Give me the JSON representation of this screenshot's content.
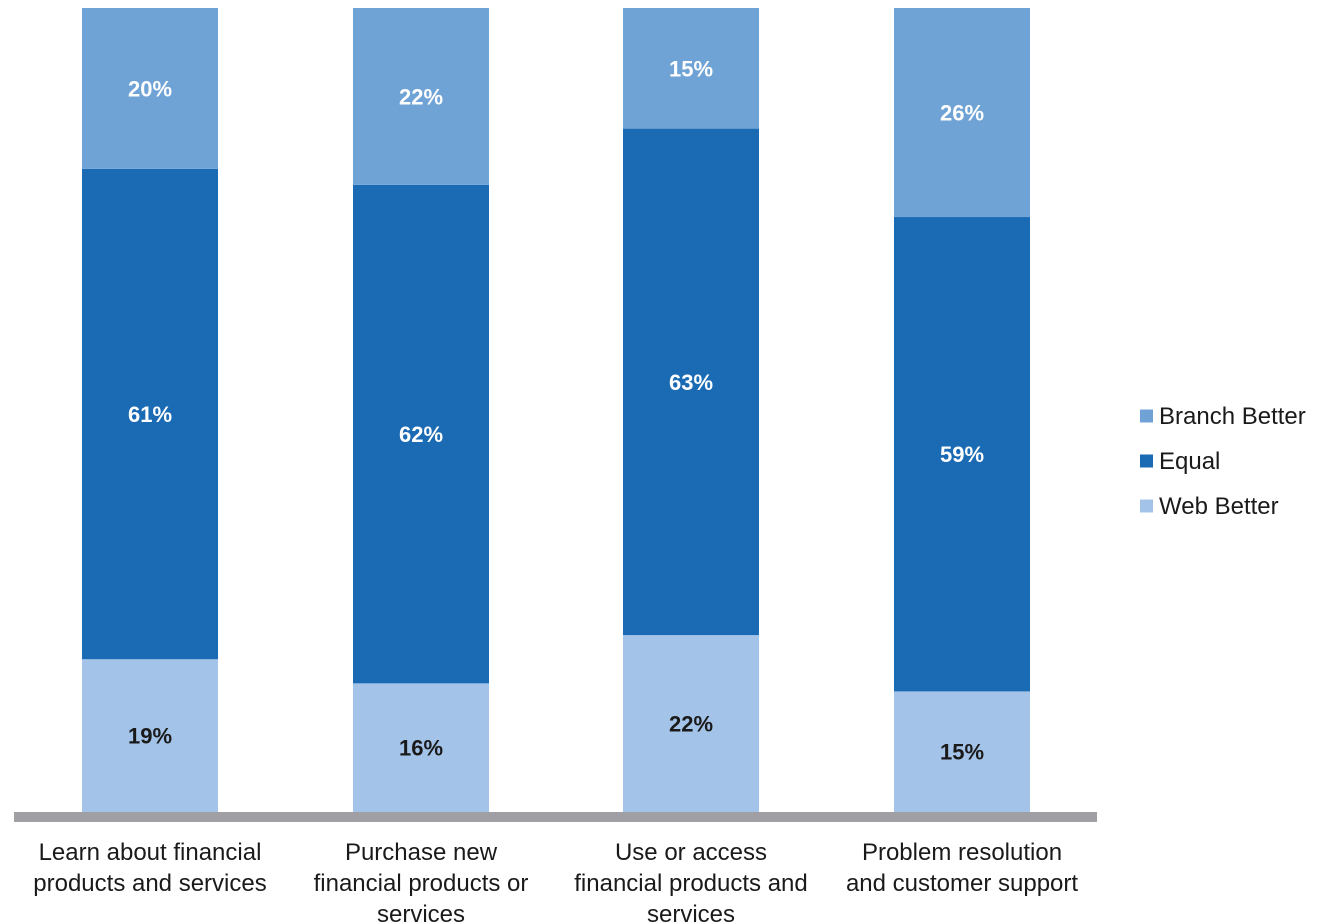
{
  "chart_data": {
    "type": "bar",
    "stacked": true,
    "categories": [
      [
        "Learn about financial",
        "products and services"
      ],
      [
        "Purchase new",
        "financial products or",
        "services"
      ],
      [
        "Use or access",
        "financial products and",
        "services"
      ],
      [
        "Problem resolution",
        "and customer support"
      ]
    ],
    "series": [
      {
        "name": "Web Better",
        "values": [
          19,
          16,
          22,
          15
        ],
        "color": "#a3c4e8",
        "label_color": "#1a1a1a"
      },
      {
        "name": "Equal",
        "values": [
          61,
          62,
          63,
          59
        ],
        "color": "#1a6ab4",
        "label_color": "#ffffff"
      },
      {
        "name": "Branch Better",
        "values": [
          20,
          22,
          15,
          26
        ],
        "color": "#6fa3d6",
        "label_color": "#ffffff"
      }
    ],
    "value_suffix": "%",
    "legend_order": [
      "Branch Better",
      "Equal",
      "Web Better"
    ],
    "legend_position": "right",
    "axis_color": "#a0a0a4",
    "grid": false
  }
}
